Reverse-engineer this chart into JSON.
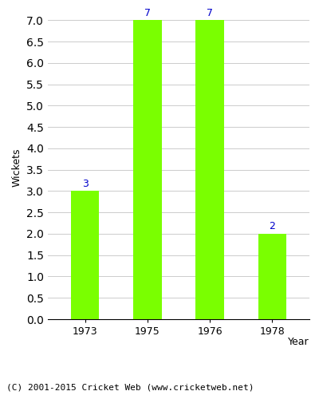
{
  "years": [
    "1973",
    "1975",
    "1976",
    "1978"
  ],
  "values": [
    3,
    7,
    7,
    2
  ],
  "bar_color": "#7aff00",
  "bar_edgecolor": "#7aff00",
  "xlabel": "Year",
  "ylabel": "Wickets",
  "ylim": [
    0,
    7.0
  ],
  "yticks": [
    0.0,
    0.5,
    1.0,
    1.5,
    2.0,
    2.5,
    3.0,
    3.5,
    4.0,
    4.5,
    5.0,
    5.5,
    6.0,
    6.5,
    7.0
  ],
  "label_color": "#0000cc",
  "label_fontsize": 9,
  "grid_color": "#cccccc",
  "background_color": "#ffffff",
  "footer_text": "(C) 2001-2015 Cricket Web (www.cricketweb.net)",
  "footer_fontsize": 8,
  "bar_width": 0.45
}
